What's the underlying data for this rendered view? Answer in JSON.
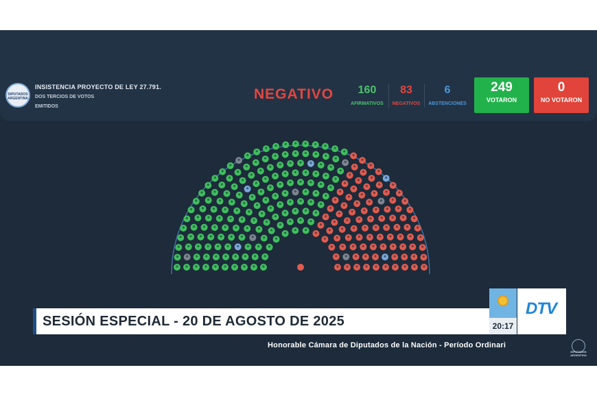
{
  "header": {
    "logo_text": "DIPUTADOS\nARGENTINA",
    "law_title": "INSISTENCIA PROYECTO DE LEY 27.791.",
    "law_subtitle": "DOS TERCIOS DE VOTOS EMITIDOS",
    "result": "NEGATIVO",
    "counts": {
      "afirmativos": {
        "value": "160",
        "label": "AFIRMATIVOS"
      },
      "negativos": {
        "value": "83",
        "label": "NEGATIVOS"
      },
      "abstenciones": {
        "value": "6",
        "label": "ABSTENCIONES"
      }
    },
    "votaron": {
      "value": "249",
      "label": "VOTARON"
    },
    "no_votaron": {
      "value": "0",
      "label": "NO VOTARON"
    }
  },
  "hemicycle": {
    "colors": {
      "afirmativo": "#3fbf5d",
      "negativo": "#e15b4f",
      "abstencion": "#7aa7d8",
      "ausente": "#7d8590",
      "ring": "#3f6fa0"
    },
    "seats": {
      "afirmativo": 160,
      "negativo": 83,
      "abstencion": 6,
      "ausente": 8
    }
  },
  "lower_third": {
    "session": "SESIÓN ESPECIAL - 20 DE AGOSTO DE 2025",
    "time": "20:17",
    "channel": "DTV",
    "chamber": "Honorable Cámara de Diputados de la Nación - Período Ordinari",
    "corner_logo_text": "DIPUTADOS ARGENTINA"
  }
}
